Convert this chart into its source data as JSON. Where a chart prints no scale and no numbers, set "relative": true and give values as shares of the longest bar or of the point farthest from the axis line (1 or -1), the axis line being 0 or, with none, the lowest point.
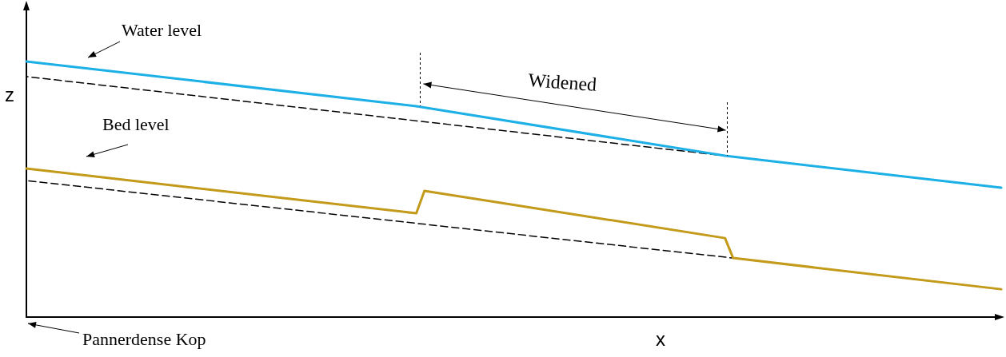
{
  "chart_data": {
    "type": "line",
    "relative": true,
    "xlabel": "x",
    "ylabel": "z",
    "marker": "none",
    "categories": [
      null,
      null,
      null,
      null,
      null,
      null,
      null,
      null,
      null,
      null,
      null,
      null,
      null,
      null,
      null,
      null,
      null,
      null,
      null,
      null,
      null,
      null,
      null,
      null,
      null,
      null,
      null,
      null,
      null,
      null,
      null,
      null,
      null,
      null,
      null,
      null,
      null,
      null,
      null,
      null,
      null,
      null,
      null,
      null,
      null,
      null,
      null,
      null,
      null,
      null,
      null,
      null,
      null,
      null,
      null,
      null,
      null,
      null,
      null,
      null,
      null,
      null,
      null,
      null,
      null,
      null,
      null,
      null,
      null,
      null,
      null,
      null,
      null,
      null,
      null,
      null,
      null,
      null,
      null,
      null,
      null,
      null,
      null,
      null,
      null,
      null,
      null,
      null,
      null,
      null,
      null,
      null,
      null,
      null,
      null,
      null,
      null,
      null,
      null,
      null,
      null,
      null,
      null,
      null,
      null,
      null,
      null,
      null,
      null,
      null,
      null,
      null,
      null,
      null,
      null,
      null,
      null,
      null,
      null,
      null,
      null
    ],
    "series": [
      {
        "color": "#000000",
        "line_style": "dashed",
        "values": [
          0.941,
          null,
          null,
          null,
          null,
          null,
          null,
          null,
          null,
          null,
          null,
          null,
          null,
          null,
          null,
          null,
          null,
          null,
          null,
          null,
          null,
          null,
          null,
          null,
          null,
          null,
          null,
          null,
          null,
          null,
          null,
          null,
          null,
          null,
          null,
          null,
          null,
          null,
          null,
          null,
          null,
          null,
          null,
          null,
          null,
          null,
          null,
          null,
          null,
          null,
          null,
          null,
          null,
          null,
          null,
          null,
          null,
          null,
          null,
          null,
          null,
          null,
          null,
          null,
          null,
          null,
          null,
          null,
          null,
          null,
          null,
          null,
          null,
          null,
          null,
          null,
          null,
          null,
          null,
          null,
          null,
          null,
          null,
          null,
          null,
          null,
          0.631,
          null,
          null,
          null,
          null,
          null,
          null,
          null,
          null,
          null,
          null,
          null,
          null,
          null,
          null,
          null,
          null,
          null,
          null,
          null,
          null,
          null,
          null,
          null,
          null,
          null,
          null,
          null,
          null,
          null,
          null,
          null,
          null,
          null,
          null
        ]
      },
      {
        "color": "#000000",
        "line_style": "dashed",
        "values": [
          0.534,
          null,
          null,
          null,
          null,
          null,
          null,
          null,
          null,
          null,
          null,
          null,
          null,
          null,
          null,
          null,
          null,
          null,
          null,
          null,
          null,
          null,
          null,
          null,
          null,
          null,
          null,
          null,
          null,
          null,
          null,
          null,
          null,
          null,
          null,
          null,
          null,
          null,
          null,
          null,
          null,
          null,
          null,
          null,
          null,
          null,
          null,
          null,
          null,
          null,
          null,
          null,
          null,
          null,
          null,
          null,
          null,
          null,
          null,
          null,
          null,
          null,
          null,
          null,
          null,
          null,
          null,
          null,
          null,
          null,
          null,
          null,
          null,
          null,
          null,
          null,
          null,
          null,
          null,
          null,
          null,
          null,
          null,
          null,
          null,
          null,
          null,
          0.231,
          null,
          null,
          null,
          null,
          null,
          null,
          null,
          null,
          null,
          null,
          null,
          null,
          null,
          null,
          null,
          null,
          null,
          null,
          null,
          null,
          null,
          null,
          null,
          null,
          null,
          null,
          null,
          null,
          null,
          null,
          null,
          null,
          null
        ]
      },
      {
        "color": "#1cb0e6",
        "line_style": "solid",
        "values": [
          1,
          null,
          null,
          null,
          null,
          null,
          null,
          null,
          null,
          null,
          null,
          null,
          null,
          null,
          null,
          null,
          null,
          null,
          null,
          null,
          null,
          null,
          null,
          null,
          null,
          null,
          null,
          null,
          null,
          null,
          null,
          null,
          null,
          null,
          null,
          null,
          null,
          null,
          null,
          null,
          null,
          null,
          null,
          null,
          null,
          null,
          null,
          null,
          0.825,
          null,
          null,
          null,
          null,
          null,
          null,
          null,
          null,
          null,
          null,
          null,
          null,
          null,
          null,
          null,
          null,
          null,
          null,
          null,
          null,
          null,
          null,
          null,
          null,
          null,
          null,
          null,
          null,
          null,
          null,
          null,
          null,
          null,
          null,
          null,
          null,
          null,
          0.631,
          null,
          null,
          null,
          null,
          null,
          null,
          null,
          null,
          null,
          null,
          null,
          null,
          null,
          null,
          null,
          null,
          null,
          null,
          null,
          null,
          null,
          null,
          null,
          null,
          null,
          null,
          null,
          null,
          null,
          null,
          null,
          null,
          null,
          0.506
        ]
      },
      {
        "color": "#c39a1a",
        "line_style": "solid",
        "values": [
          0.581,
          null,
          null,
          null,
          null,
          null,
          null,
          null,
          null,
          null,
          null,
          null,
          null,
          null,
          null,
          null,
          null,
          null,
          null,
          null,
          null,
          null,
          null,
          null,
          null,
          null,
          null,
          null,
          null,
          null,
          null,
          null,
          null,
          null,
          null,
          null,
          null,
          null,
          null,
          null,
          null,
          null,
          null,
          null,
          null,
          null,
          null,
          null,
          0.406,
          0.494,
          null,
          null,
          null,
          null,
          null,
          null,
          null,
          null,
          null,
          null,
          null,
          null,
          null,
          null,
          null,
          null,
          null,
          null,
          null,
          null,
          null,
          null,
          null,
          null,
          null,
          null,
          null,
          null,
          null,
          null,
          null,
          null,
          null,
          null,
          null,
          null,
          0.309,
          0.231,
          null,
          null,
          null,
          null,
          null,
          null,
          null,
          null,
          null,
          null,
          null,
          null,
          null,
          null,
          null,
          null,
          null,
          null,
          null,
          null,
          null,
          null,
          null,
          null,
          null,
          null,
          null,
          null,
          null,
          null,
          null,
          null,
          0.109
        ]
      }
    ],
    "annotations": [
      "Water level",
      "Bed level",
      "Widened",
      "Pannerdense Kop"
    ]
  }
}
